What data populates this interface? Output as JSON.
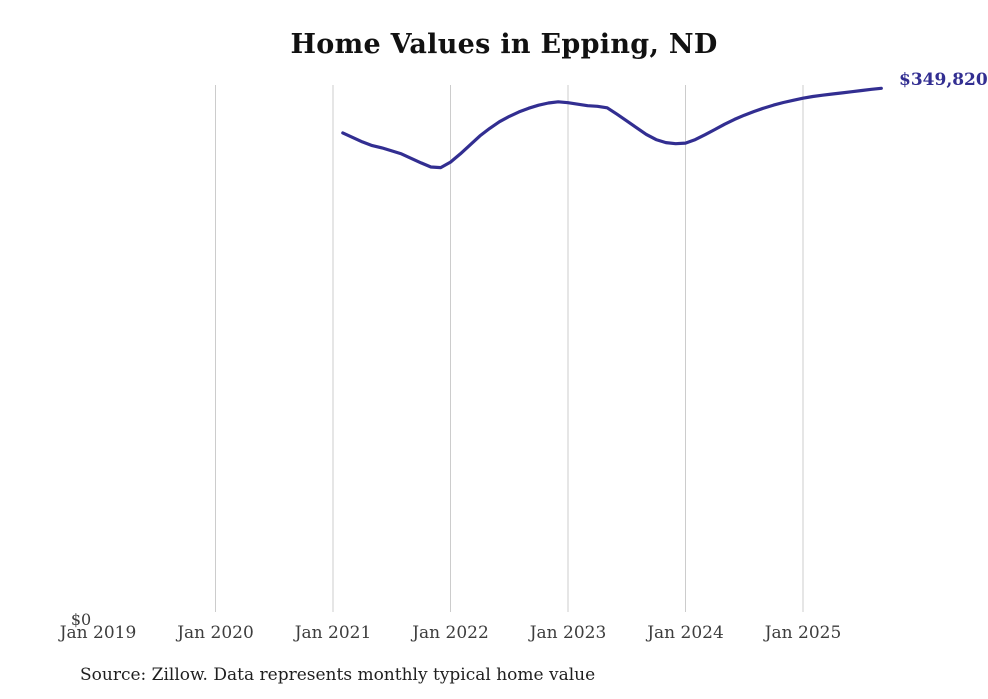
{
  "page": {
    "background_color": "#ffffff"
  },
  "chart_data": {
    "type": "line",
    "title": "Home Values in Epping, ND",
    "latest_value_label": "$349,820",
    "y_zero_label": "$0",
    "source_note": "Source: Zillow. Data represents monthly typical home value",
    "line_color": "#322e91",
    "gridline_color": "#cccccc",
    "ylim": [
      0,
      352000
    ],
    "legend": "none",
    "x_ticks": [
      {
        "label": "Jan 2019",
        "gridline": false
      },
      {
        "label": "Jan 2020",
        "gridline": true
      },
      {
        "label": "Jan 2021",
        "gridline": true
      },
      {
        "label": "Jan 2022",
        "gridline": true
      },
      {
        "label": "Jan 2023",
        "gridline": true
      },
      {
        "label": "Jan 2024",
        "gridline": true
      },
      {
        "label": "Jan 2025",
        "gridline": true
      }
    ],
    "series": [
      {
        "name": "Monthly typical home value",
        "start_month": "2021-02",
        "frequency": "monthly",
        "values": [
          320000,
          317000,
          314000,
          311500,
          310000,
          308000,
          306000,
          303000,
          300000,
          297200,
          296800,
          300500,
          306000,
          312000,
          318000,
          323000,
          327500,
          331000,
          334000,
          336500,
          338500,
          340000,
          340800,
          340200,
          339200,
          338200,
          337800,
          336800,
          332500,
          328000,
          323500,
          319000,
          315500,
          313500,
          312800,
          313200,
          315500,
          318800,
          322300,
          325800,
          329000,
          331800,
          334300,
          336600,
          338600,
          340300,
          341800,
          343200,
          344300,
          345200,
          346000,
          346700,
          347500,
          348300,
          349100,
          349820
        ]
      }
    ]
  }
}
